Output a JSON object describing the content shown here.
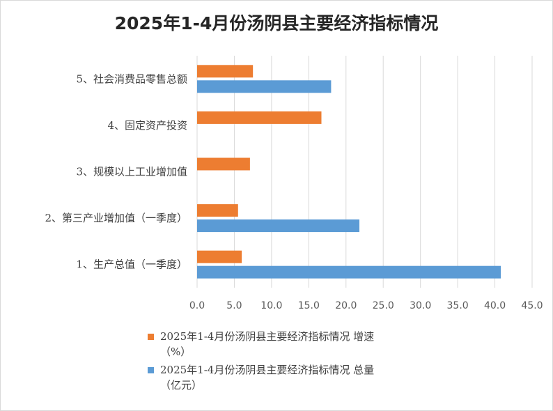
{
  "chart_data": {
    "type": "bar",
    "orientation": "horizontal",
    "title": "2025年1-4月份汤阴县主要经济指标情况",
    "categories": [
      "5、社会消费品零售总额",
      "4、固定资产投资",
      "3、规模以上工业增加值",
      "2、第三产业增加值（一季度）",
      "1、生产总值（一季度）"
    ],
    "series": [
      {
        "name": "2025年1-4月份汤阴县主要经济指标情况 增速\n（%）",
        "color": "#ed7d31",
        "values": [
          7.5,
          16.7,
          7.1,
          5.5,
          6.0
        ]
      },
      {
        "name": "2025年1-4月份汤阴县主要经济指标情况 总量\n（亿元）",
        "color": "#5b9bd5",
        "values": [
          18.0,
          null,
          null,
          21.8,
          40.8
        ]
      }
    ],
    "xlim": [
      0,
      45
    ],
    "xticks": [
      "0.0",
      "5.0",
      "10.0",
      "15.0",
      "20.0",
      "25.0",
      "30.0",
      "35.0",
      "40.0",
      "45.0"
    ],
    "grid": "vertical",
    "legend_position": "bottom"
  }
}
